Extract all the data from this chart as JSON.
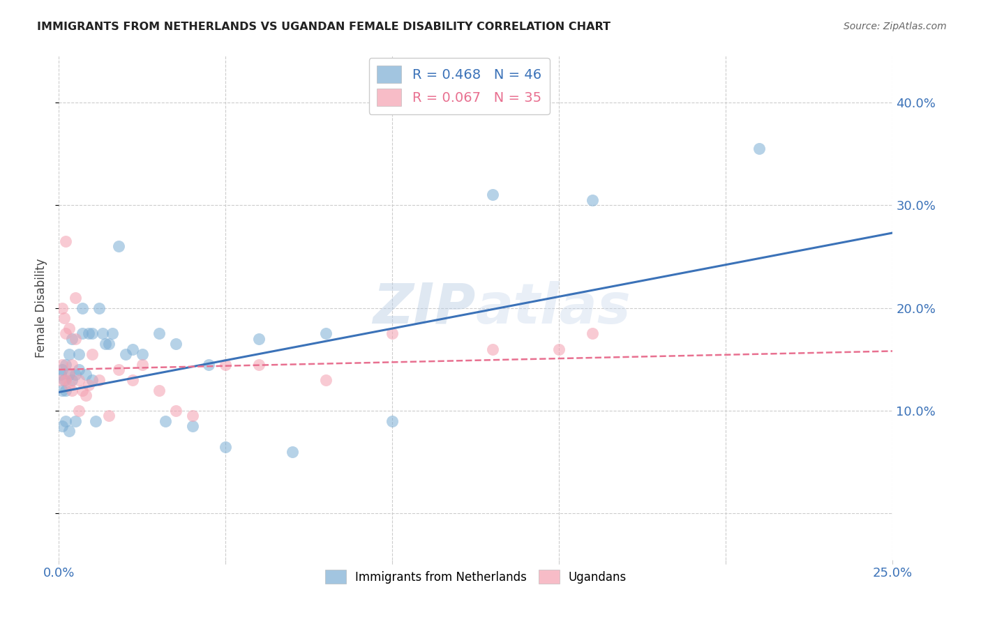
{
  "title": "IMMIGRANTS FROM NETHERLANDS VS UGANDAN FEMALE DISABILITY CORRELATION CHART",
  "source": "Source: ZipAtlas.com",
  "ylabel": "Female Disability",
  "xlim": [
    0.0,
    0.25
  ],
  "ylim": [
    -0.045,
    0.445
  ],
  "xticks": [
    0.0,
    0.05,
    0.1,
    0.15,
    0.2,
    0.25
  ],
  "yticks": [
    0.0,
    0.1,
    0.2,
    0.3,
    0.4
  ],
  "ytick_labels": [
    "",
    "10.0%",
    "20.0%",
    "30.0%",
    "40.0%"
  ],
  "xtick_labels": [
    "0.0%",
    "",
    "",
    "",
    "",
    "25.0%"
  ],
  "blue_R": 0.468,
  "blue_N": 46,
  "pink_R": 0.067,
  "pink_N": 35,
  "blue_scatter_x": [
    0.0005,
    0.001,
    0.001,
    0.0015,
    0.002,
    0.002,
    0.002,
    0.003,
    0.003,
    0.003,
    0.004,
    0.004,
    0.005,
    0.005,
    0.006,
    0.006,
    0.007,
    0.007,
    0.008,
    0.009,
    0.01,
    0.01,
    0.011,
    0.012,
    0.013,
    0.014,
    0.015,
    0.016,
    0.018,
    0.02,
    0.022,
    0.025,
    0.03,
    0.032,
    0.035,
    0.04,
    0.045,
    0.05,
    0.06,
    0.07,
    0.08,
    0.1,
    0.13,
    0.16,
    0.21,
    0.001
  ],
  "blue_scatter_y": [
    0.135,
    0.14,
    0.085,
    0.13,
    0.145,
    0.09,
    0.12,
    0.155,
    0.135,
    0.08,
    0.17,
    0.13,
    0.135,
    0.09,
    0.155,
    0.14,
    0.2,
    0.175,
    0.135,
    0.175,
    0.175,
    0.13,
    0.09,
    0.2,
    0.175,
    0.165,
    0.165,
    0.175,
    0.26,
    0.155,
    0.16,
    0.155,
    0.175,
    0.09,
    0.165,
    0.085,
    0.145,
    0.065,
    0.17,
    0.06,
    0.175,
    0.09,
    0.31,
    0.305,
    0.355,
    0.12
  ],
  "pink_scatter_x": [
    0.0005,
    0.001,
    0.001,
    0.0015,
    0.002,
    0.002,
    0.003,
    0.003,
    0.003,
    0.004,
    0.004,
    0.005,
    0.005,
    0.006,
    0.006,
    0.007,
    0.008,
    0.009,
    0.01,
    0.012,
    0.015,
    0.018,
    0.022,
    0.025,
    0.03,
    0.035,
    0.04,
    0.05,
    0.06,
    0.08,
    0.1,
    0.13,
    0.15,
    0.16,
    0.002
  ],
  "pink_scatter_y": [
    0.13,
    0.2,
    0.145,
    0.19,
    0.175,
    0.13,
    0.135,
    0.18,
    0.125,
    0.145,
    0.12,
    0.21,
    0.17,
    0.13,
    0.1,
    0.12,
    0.115,
    0.125,
    0.155,
    0.13,
    0.095,
    0.14,
    0.13,
    0.145,
    0.12,
    0.1,
    0.095,
    0.145,
    0.145,
    0.13,
    0.175,
    0.16,
    0.16,
    0.175,
    0.265
  ],
  "blue_line_x": [
    0.0,
    0.25
  ],
  "blue_line_y": [
    0.118,
    0.273
  ],
  "pink_line_x": [
    0.0,
    0.25
  ],
  "pink_line_y": [
    0.14,
    0.158
  ],
  "blue_color": "#7BADD4",
  "pink_color": "#F4A0B0",
  "blue_line_color": "#3B72B8",
  "pink_line_color": "#E87090",
  "grid_color": "#CCCCCC",
  "background_color": "#FFFFFF",
  "watermark_part1": "ZIP",
  "watermark_part2": "atlas",
  "legend_label_blue": "Immigrants from Netherlands",
  "legend_label_pink": "Ugandans"
}
